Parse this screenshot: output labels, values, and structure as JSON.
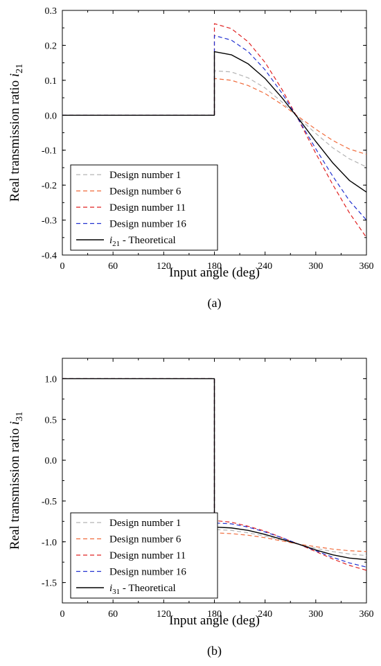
{
  "chart_data": [
    {
      "type": "line",
      "panel_label": "(a)",
      "xlabel": "Input angle (deg)",
      "ylabel_main": "Real transmission ratio ",
      "ylabel_italic": "i",
      "ylabel_sub": "21",
      "xlim": [
        0,
        360
      ],
      "ylim": [
        -0.4,
        0.3
      ],
      "xticks": [
        0,
        60,
        120,
        180,
        240,
        300,
        360
      ],
      "xtick_labels": [
        "0",
        "60",
        "120",
        "180",
        "240",
        "300",
        "360"
      ],
      "yticks": [
        0.3,
        0.2,
        0.1,
        0.0,
        -0.1,
        -0.2,
        -0.3,
        -0.4
      ],
      "ytick_labels": [
        "0.3",
        "0.2",
        "0.1",
        "0.0",
        "-0.1",
        "-0.2",
        "-0.3",
        "-0.4"
      ],
      "grid": false,
      "legend_position": "bottom-left",
      "series": [
        {
          "name": "Design number 1",
          "color": "#b3b3b3",
          "style": "dashed",
          "x": [
            0,
            180,
            180,
            200,
            220,
            240,
            260,
            280,
            300,
            320,
            340,
            360
          ],
          "y": [
            0,
            0,
            0.127,
            0.124,
            0.107,
            0.078,
            0.038,
            -0.008,
            -0.052,
            -0.093,
            -0.125,
            -0.148
          ]
        },
        {
          "name": "Design number 6",
          "color": "#f06a3a",
          "style": "dashed",
          "x": [
            0,
            180,
            180,
            200,
            220,
            240,
            260,
            280,
            300,
            320,
            340,
            360
          ],
          "y": [
            0,
            0,
            0.105,
            0.1,
            0.085,
            0.062,
            0.031,
            -0.005,
            -0.04,
            -0.072,
            -0.097,
            -0.112
          ]
        },
        {
          "name": "Design number 11",
          "color": "#e02020",
          "style": "dashed",
          "x": [
            0,
            180,
            180,
            200,
            220,
            240,
            260,
            280,
            300,
            320,
            340,
            360
          ],
          "y": [
            0,
            0,
            0.262,
            0.248,
            0.21,
            0.151,
            0.074,
            -0.015,
            -0.109,
            -0.198,
            -0.28,
            -0.35
          ]
        },
        {
          "name": "Design number 16",
          "color": "#2030d0",
          "style": "dashed",
          "x": [
            0,
            180,
            180,
            200,
            220,
            240,
            260,
            280,
            300,
            320,
            340,
            360
          ],
          "y": [
            0,
            0,
            0.228,
            0.215,
            0.182,
            0.13,
            0.063,
            -0.014,
            -0.096,
            -0.174,
            -0.245,
            -0.3
          ]
        },
        {
          "name_italic": "i",
          "name_sub": "21",
          "name_rest": " - Theoretical",
          "color": "#000000",
          "style": "solid",
          "x": [
            0,
            180,
            180,
            200,
            220,
            240,
            260,
            280,
            300,
            320,
            340,
            360
          ],
          "y": [
            0,
            0,
            0.182,
            0.173,
            0.147,
            0.105,
            0.05,
            -0.011,
            -0.075,
            -0.136,
            -0.187,
            -0.22
          ]
        }
      ]
    },
    {
      "type": "line",
      "panel_label": "(b)",
      "xlabel": "Input angle (deg)",
      "ylabel_main": "Real transmission ratio ",
      "ylabel_italic": "i",
      "ylabel_sub": "31",
      "xlim": [
        0,
        360
      ],
      "ylim": [
        -1.75,
        1.25
      ],
      "xticks": [
        0,
        60,
        120,
        180,
        240,
        300,
        360
      ],
      "xtick_labels": [
        "0",
        "60",
        "120",
        "180",
        "240",
        "300",
        "360"
      ],
      "yticks": [
        1.0,
        0.5,
        0.0,
        -0.5,
        -1.0,
        -1.5
      ],
      "ytick_labels": [
        "1.0",
        "0.5",
        "0.0",
        "-0.5",
        "-1.0",
        "-1.5"
      ],
      "grid": false,
      "legend_position": "bottom-left",
      "series": [
        {
          "name": "Design number 1",
          "color": "#b3b3b3",
          "style": "dashed",
          "x": [
            0,
            180,
            180,
            200,
            220,
            240,
            260,
            280,
            300,
            320,
            340,
            360
          ],
          "y": [
            1,
            1,
            -0.85,
            -0.86,
            -0.89,
            -0.93,
            -0.98,
            -1.03,
            -1.08,
            -1.12,
            -1.15,
            -1.17
          ]
        },
        {
          "name": "Design number 6",
          "color": "#f06a3a",
          "style": "dashed",
          "x": [
            0,
            180,
            180,
            200,
            220,
            240,
            260,
            280,
            300,
            320,
            340,
            360
          ],
          "y": [
            1,
            1,
            -0.89,
            -0.9,
            -0.92,
            -0.95,
            -0.99,
            -1.03,
            -1.06,
            -1.09,
            -1.11,
            -1.12
          ]
        },
        {
          "name": "Design number 11",
          "color": "#e02020",
          "style": "dashed",
          "x": [
            0,
            180,
            180,
            200,
            220,
            240,
            260,
            280,
            300,
            320,
            340,
            360
          ],
          "y": [
            1,
            1,
            -0.74,
            -0.76,
            -0.81,
            -0.87,
            -0.95,
            -1.03,
            -1.12,
            -1.21,
            -1.29,
            -1.35
          ]
        },
        {
          "name": "Design number 16",
          "color": "#2030d0",
          "style": "dashed",
          "x": [
            0,
            180,
            180,
            200,
            220,
            240,
            260,
            280,
            300,
            320,
            340,
            360
          ],
          "y": [
            1,
            1,
            -0.77,
            -0.78,
            -0.82,
            -0.88,
            -0.95,
            -1.03,
            -1.11,
            -1.19,
            -1.26,
            -1.31
          ]
        },
        {
          "name_italic": "i",
          "name_sub": "31",
          "name_rest": " - Theoretical",
          "color": "#000000",
          "style": "solid",
          "x": [
            0,
            180,
            180,
            200,
            220,
            240,
            260,
            280,
            300,
            320,
            340,
            360
          ],
          "y": [
            1,
            1,
            -0.82,
            -0.83,
            -0.86,
            -0.91,
            -0.97,
            -1.03,
            -1.1,
            -1.16,
            -1.2,
            -1.22
          ]
        }
      ]
    }
  ]
}
